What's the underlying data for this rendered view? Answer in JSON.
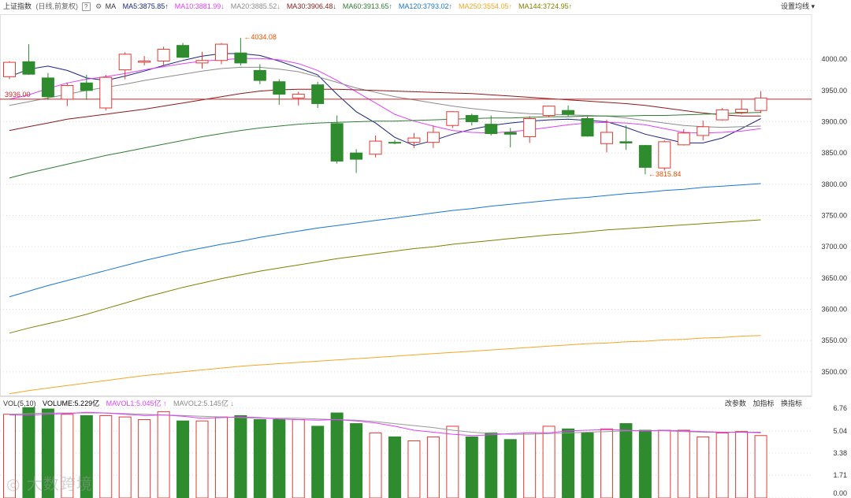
{
  "header": {
    "index_name": "上证指数",
    "mode": "(日线,前复权)",
    "help_label": "?",
    "ma_label": "MA",
    "ma_items": [
      {
        "label": "MA5:3875.85",
        "arrow": "↑",
        "color": "#1a237e"
      },
      {
        "label": "MA10:3881.99",
        "arrow": "↓",
        "color": "#e040fb"
      },
      {
        "label": "MA20:3885.52",
        "arrow": "↓",
        "color": "#8c8c8c"
      },
      {
        "label": "MA30:3906.48",
        "arrow": "↓",
        "color": "#8b1a1a"
      },
      {
        "label": "MA60:3913.65",
        "arrow": "↑",
        "color": "#2e7d32"
      },
      {
        "label": "MA120:3793.02",
        "arrow": "↑",
        "color": "#1976d2"
      },
      {
        "label": "MA250:3554.05",
        "arrow": "↑",
        "color": "#f5a623"
      },
      {
        "label": "MA144:3724.95",
        "arrow": "↑",
        "color": "#808000"
      }
    ],
    "settings_label": "设置均线"
  },
  "volume_header": {
    "vol_label": "VOL(5,10)",
    "volume_label": "VOLUME:5.229亿",
    "mavol1_label": "MAVOL1:5.045亿",
    "mavol2_label": "MAVOL2:5.145亿",
    "mavol1_arrow": "↑",
    "mavol2_arrow": "↓",
    "buttons": [
      "改参数",
      "加指标",
      "换指标"
    ]
  },
  "watermark": "大数跨境",
  "colors": {
    "up": "#e53935",
    "down": "#2e8b2e",
    "grid": "#dcdcdc",
    "ref_line": "#c62828",
    "annotation": "#e65100",
    "axis_text": "#333333"
  },
  "chart_data": {
    "type": "candlestick",
    "y_ticks": [
      "4000.00",
      "3950.00",
      "3900.00",
      "3850.00",
      "3800.00",
      "3750.00",
      "3700.00",
      "3650.00",
      "3600.00",
      "3550.00",
      "3500.00"
    ],
    "ylim": [
      3462,
      4072
    ],
    "reference_line": {
      "label": "3936.00",
      "value": 3936
    },
    "annotations": [
      {
        "text": "4034.08",
        "index": 12,
        "value": 4034.08
      },
      {
        "text": "3815.84",
        "index": 33,
        "value": 3815.84
      }
    ],
    "candles": [
      {
        "o": 3972,
        "h": 3997,
        "l": 3968,
        "c": 3995
      },
      {
        "o": 3996,
        "h": 4024,
        "l": 3975,
        "c": 3976
      },
      {
        "o": 3970,
        "h": 3978,
        "l": 3935,
        "c": 3940
      },
      {
        "o": 3936,
        "h": 3962,
        "l": 3925,
        "c": 3958
      },
      {
        "o": 3962,
        "h": 3975,
        "l": 3935,
        "c": 3950
      },
      {
        "o": 3922,
        "h": 3975,
        "l": 3918,
        "c": 3971
      },
      {
        "o": 3983,
        "h": 4011,
        "l": 3968,
        "c": 4008
      },
      {
        "o": 3995,
        "h": 4005,
        "l": 3990,
        "c": 3997
      },
      {
        "o": 3997,
        "h": 4020,
        "l": 3989,
        "c": 4016
      },
      {
        "o": 4022,
        "h": 4026,
        "l": 4002,
        "c": 4003
      },
      {
        "o": 3994,
        "h": 4012,
        "l": 3985,
        "c": 3998
      },
      {
        "o": 3998,
        "h": 4026,
        "l": 3992,
        "c": 4024
      },
      {
        "o": 4010,
        "h": 4034.08,
        "l": 3990,
        "c": 3994
      },
      {
        "o": 3982,
        "h": 3992,
        "l": 3960,
        "c": 3966
      },
      {
        "o": 3964,
        "h": 3968,
        "l": 3927,
        "c": 3944
      },
      {
        "o": 3938,
        "h": 3948,
        "l": 3926,
        "c": 3944
      },
      {
        "o": 3959,
        "h": 3964,
        "l": 3922,
        "c": 3929
      },
      {
        "o": 3897,
        "h": 3910,
        "l": 3833,
        "c": 3837
      },
      {
        "o": 3850,
        "h": 3856,
        "l": 3818,
        "c": 3840
      },
      {
        "o": 3848,
        "h": 3878,
        "l": 3843,
        "c": 3869
      },
      {
        "o": 3867,
        "h": 3871,
        "l": 3864,
        "c": 3866
      },
      {
        "o": 3867,
        "h": 3882,
        "l": 3858,
        "c": 3874
      },
      {
        "o": 3867,
        "h": 3894,
        "l": 3858,
        "c": 3883
      },
      {
        "o": 3894,
        "h": 3917,
        "l": 3890,
        "c": 3916
      },
      {
        "o": 3910,
        "h": 3913,
        "l": 3894,
        "c": 3900
      },
      {
        "o": 3896,
        "h": 3910,
        "l": 3878,
        "c": 3881
      },
      {
        "o": 3883,
        "h": 3890,
        "l": 3859,
        "c": 3880
      },
      {
        "o": 3876,
        "h": 3909,
        "l": 3866,
        "c": 3905
      },
      {
        "o": 3910,
        "h": 3925,
        "l": 3907,
        "c": 3925
      },
      {
        "o": 3918,
        "h": 3926,
        "l": 3908,
        "c": 3912
      },
      {
        "o": 3905,
        "h": 3908,
        "l": 3876,
        "c": 3877
      },
      {
        "o": 3865,
        "h": 3903,
        "l": 3851,
        "c": 3883
      },
      {
        "o": 3868,
        "h": 3894,
        "l": 3855,
        "c": 3866
      },
      {
        "o": 3862,
        "h": 3863,
        "l": 3815.84,
        "c": 3827
      },
      {
        "o": 3826,
        "h": 3870,
        "l": 3822,
        "c": 3868
      },
      {
        "o": 3863,
        "h": 3888,
        "l": 3862,
        "c": 3882
      },
      {
        "o": 3878,
        "h": 3902,
        "l": 3870,
        "c": 3892
      },
      {
        "o": 3903,
        "h": 3922,
        "l": 3902,
        "c": 3919
      },
      {
        "o": 3915,
        "h": 3935,
        "l": 3912,
        "c": 3920
      },
      {
        "o": 3918,
        "h": 3949,
        "l": 3914,
        "c": 3938
      }
    ],
    "ma_lines": [
      {
        "name": "MA5",
        "color": "#1a237e",
        "values": [
          3972,
          3984,
          3989,
          3982,
          3970,
          3966,
          3973,
          3981,
          3990,
          3998,
          4005,
          4009,
          4009,
          4006,
          3997,
          3986,
          3975,
          3944,
          3916,
          3898,
          3875,
          3862,
          3870,
          3880,
          3888,
          3894,
          3898,
          3901,
          3903,
          3904,
          3902,
          3900,
          3891,
          3880,
          3873,
          3866,
          3866,
          3874,
          3889,
          3905
        ]
      },
      {
        "name": "MA10",
        "color": "#e040fb",
        "values": [
          3936,
          3943,
          3953,
          3962,
          3968,
          3972,
          3977,
          3983,
          3988,
          3993,
          3997,
          3999,
          4001,
          4001,
          3999,
          3993,
          3982,
          3966,
          3948,
          3930,
          3912,
          3901,
          3893,
          3886,
          3883,
          3882,
          3884,
          3887,
          3891,
          3895,
          3898,
          3899,
          3898,
          3895,
          3889,
          3883,
          3882,
          3883,
          3885,
          3889
        ]
      },
      {
        "name": "MA20",
        "color": "#8c8c8c",
        "values": [
          3926,
          3932,
          3938,
          3944,
          3950,
          3955,
          3960,
          3966,
          3971,
          3976,
          3981,
          3985,
          3987,
          3987,
          3984,
          3980,
          3972,
          3963,
          3954,
          3947,
          3940,
          3935,
          3930,
          3925,
          3921,
          3918,
          3915,
          3913,
          3912,
          3911,
          3910,
          3909,
          3906,
          3902,
          3898,
          3894,
          3892,
          3891,
          3892,
          3893
        ]
      },
      {
        "name": "MA30",
        "color": "#8b1a1a",
        "values": [
          3886,
          3892,
          3898,
          3904,
          3908,
          3912,
          3916,
          3920,
          3925,
          3930,
          3935,
          3940,
          3945,
          3949,
          3951,
          3952,
          3952,
          3952,
          3951,
          3950,
          3949,
          3948,
          3947,
          3946,
          3945,
          3943,
          3941,
          3939,
          3937,
          3935,
          3933,
          3931,
          3929,
          3926,
          3922,
          3918,
          3914,
          3911,
          3909,
          3909
        ]
      },
      {
        "name": "MA60",
        "color": "#2e7d32",
        "values": [
          3810,
          3818,
          3825,
          3832,
          3839,
          3846,
          3852,
          3858,
          3864,
          3870,
          3876,
          3881,
          3886,
          3890,
          3893,
          3896,
          3898,
          3899,
          3900,
          3901,
          3901,
          3902,
          3903,
          3904,
          3905,
          3906,
          3906,
          3907,
          3908,
          3908,
          3909,
          3909,
          3909,
          3910,
          3910,
          3911,
          3912,
          3913,
          3914,
          3915
        ]
      },
      {
        "name": "MA120",
        "color": "#1976d2",
        "values": [
          3620,
          3629,
          3638,
          3646,
          3654,
          3662,
          3670,
          3678,
          3685,
          3692,
          3698,
          3704,
          3709,
          3715,
          3720,
          3725,
          3730,
          3734,
          3738,
          3742,
          3746,
          3750,
          3754,
          3758,
          3761,
          3765,
          3768,
          3771,
          3774,
          3777,
          3779,
          3782,
          3785,
          3787,
          3790,
          3792,
          3795,
          3797,
          3799,
          3801
        ]
      },
      {
        "name": "MA144",
        "color": "#808000",
        "values": [
          3562,
          3570,
          3577,
          3584,
          3592,
          3601,
          3610,
          3619,
          3627,
          3635,
          3642,
          3649,
          3655,
          3661,
          3666,
          3671,
          3676,
          3681,
          3685,
          3689,
          3693,
          3697,
          3700,
          3704,
          3707,
          3710,
          3713,
          3716,
          3719,
          3721,
          3724,
          3727,
          3729,
          3731,
          3733,
          3735,
          3737,
          3739,
          3741,
          3743
        ]
      },
      {
        "name": "MA250",
        "color": "#f5a623",
        "values": [
          3465,
          3470,
          3474,
          3478,
          3482,
          3486,
          3490,
          3494,
          3497,
          3500,
          3503,
          3506,
          3509,
          3511,
          3513,
          3515,
          3517,
          3519,
          3521,
          3523,
          3525,
          3527,
          3529,
          3531,
          3533,
          3535,
          3537,
          3539,
          3541,
          3543,
          3545,
          3546,
          3548,
          3549,
          3551,
          3552,
          3554,
          3555,
          3557,
          3558
        ]
      }
    ],
    "volume": {
      "y_ticks": [
        "6.76",
        "5.04",
        "3.38",
        "1.71",
        "0.00"
      ],
      "ylim": [
        0,
        6.76
      ],
      "unit": "亿",
      "values": [
        6.3,
        6.8,
        6.7,
        6.3,
        6.2,
        6.2,
        6.1,
        5.9,
        6.5,
        5.8,
        5.8,
        6.1,
        6.2,
        5.9,
        5.9,
        5.9,
        5.4,
        6.4,
        5.6,
        4.9,
        4.6,
        4.3,
        4.6,
        5.4,
        4.6,
        4.9,
        4.4,
        4.9,
        5.4,
        5.2,
        4.9,
        5.2,
        5.6,
        5.1,
        5.1,
        5.1,
        4.6,
        4.9,
        5.0,
        4.7
      ],
      "mavol1": [
        6.25,
        6.25,
        6.3,
        6.35,
        6.45,
        6.4,
        6.3,
        6.2,
        6.25,
        6.15,
        6.0,
        6.05,
        6.1,
        6.05,
        5.95,
        5.9,
        5.85,
        5.9,
        5.8,
        5.65,
        5.4,
        5.1,
        4.95,
        4.8,
        4.7,
        4.75,
        4.85,
        4.9,
        4.9,
        5.05,
        5.1,
        5.15,
        5.1,
        5.05,
        5.1,
        5.05,
        5.0,
        4.95,
        4.95,
        4.95
      ],
      "mavol2": [
        6.3,
        6.35,
        6.4,
        6.4,
        6.4,
        6.4,
        6.35,
        6.3,
        6.25,
        6.2,
        6.15,
        6.1,
        6.05,
        6.0,
        6.0,
        6.0,
        5.95,
        5.9,
        5.85,
        5.75,
        5.6,
        5.45,
        5.3,
        5.1,
        4.95,
        4.85,
        4.8,
        4.8,
        4.85,
        4.9,
        4.95,
        5.0,
        5.05,
        5.05,
        5.05,
        5.0,
        4.95,
        4.95,
        4.95,
        4.9
      ]
    }
  }
}
